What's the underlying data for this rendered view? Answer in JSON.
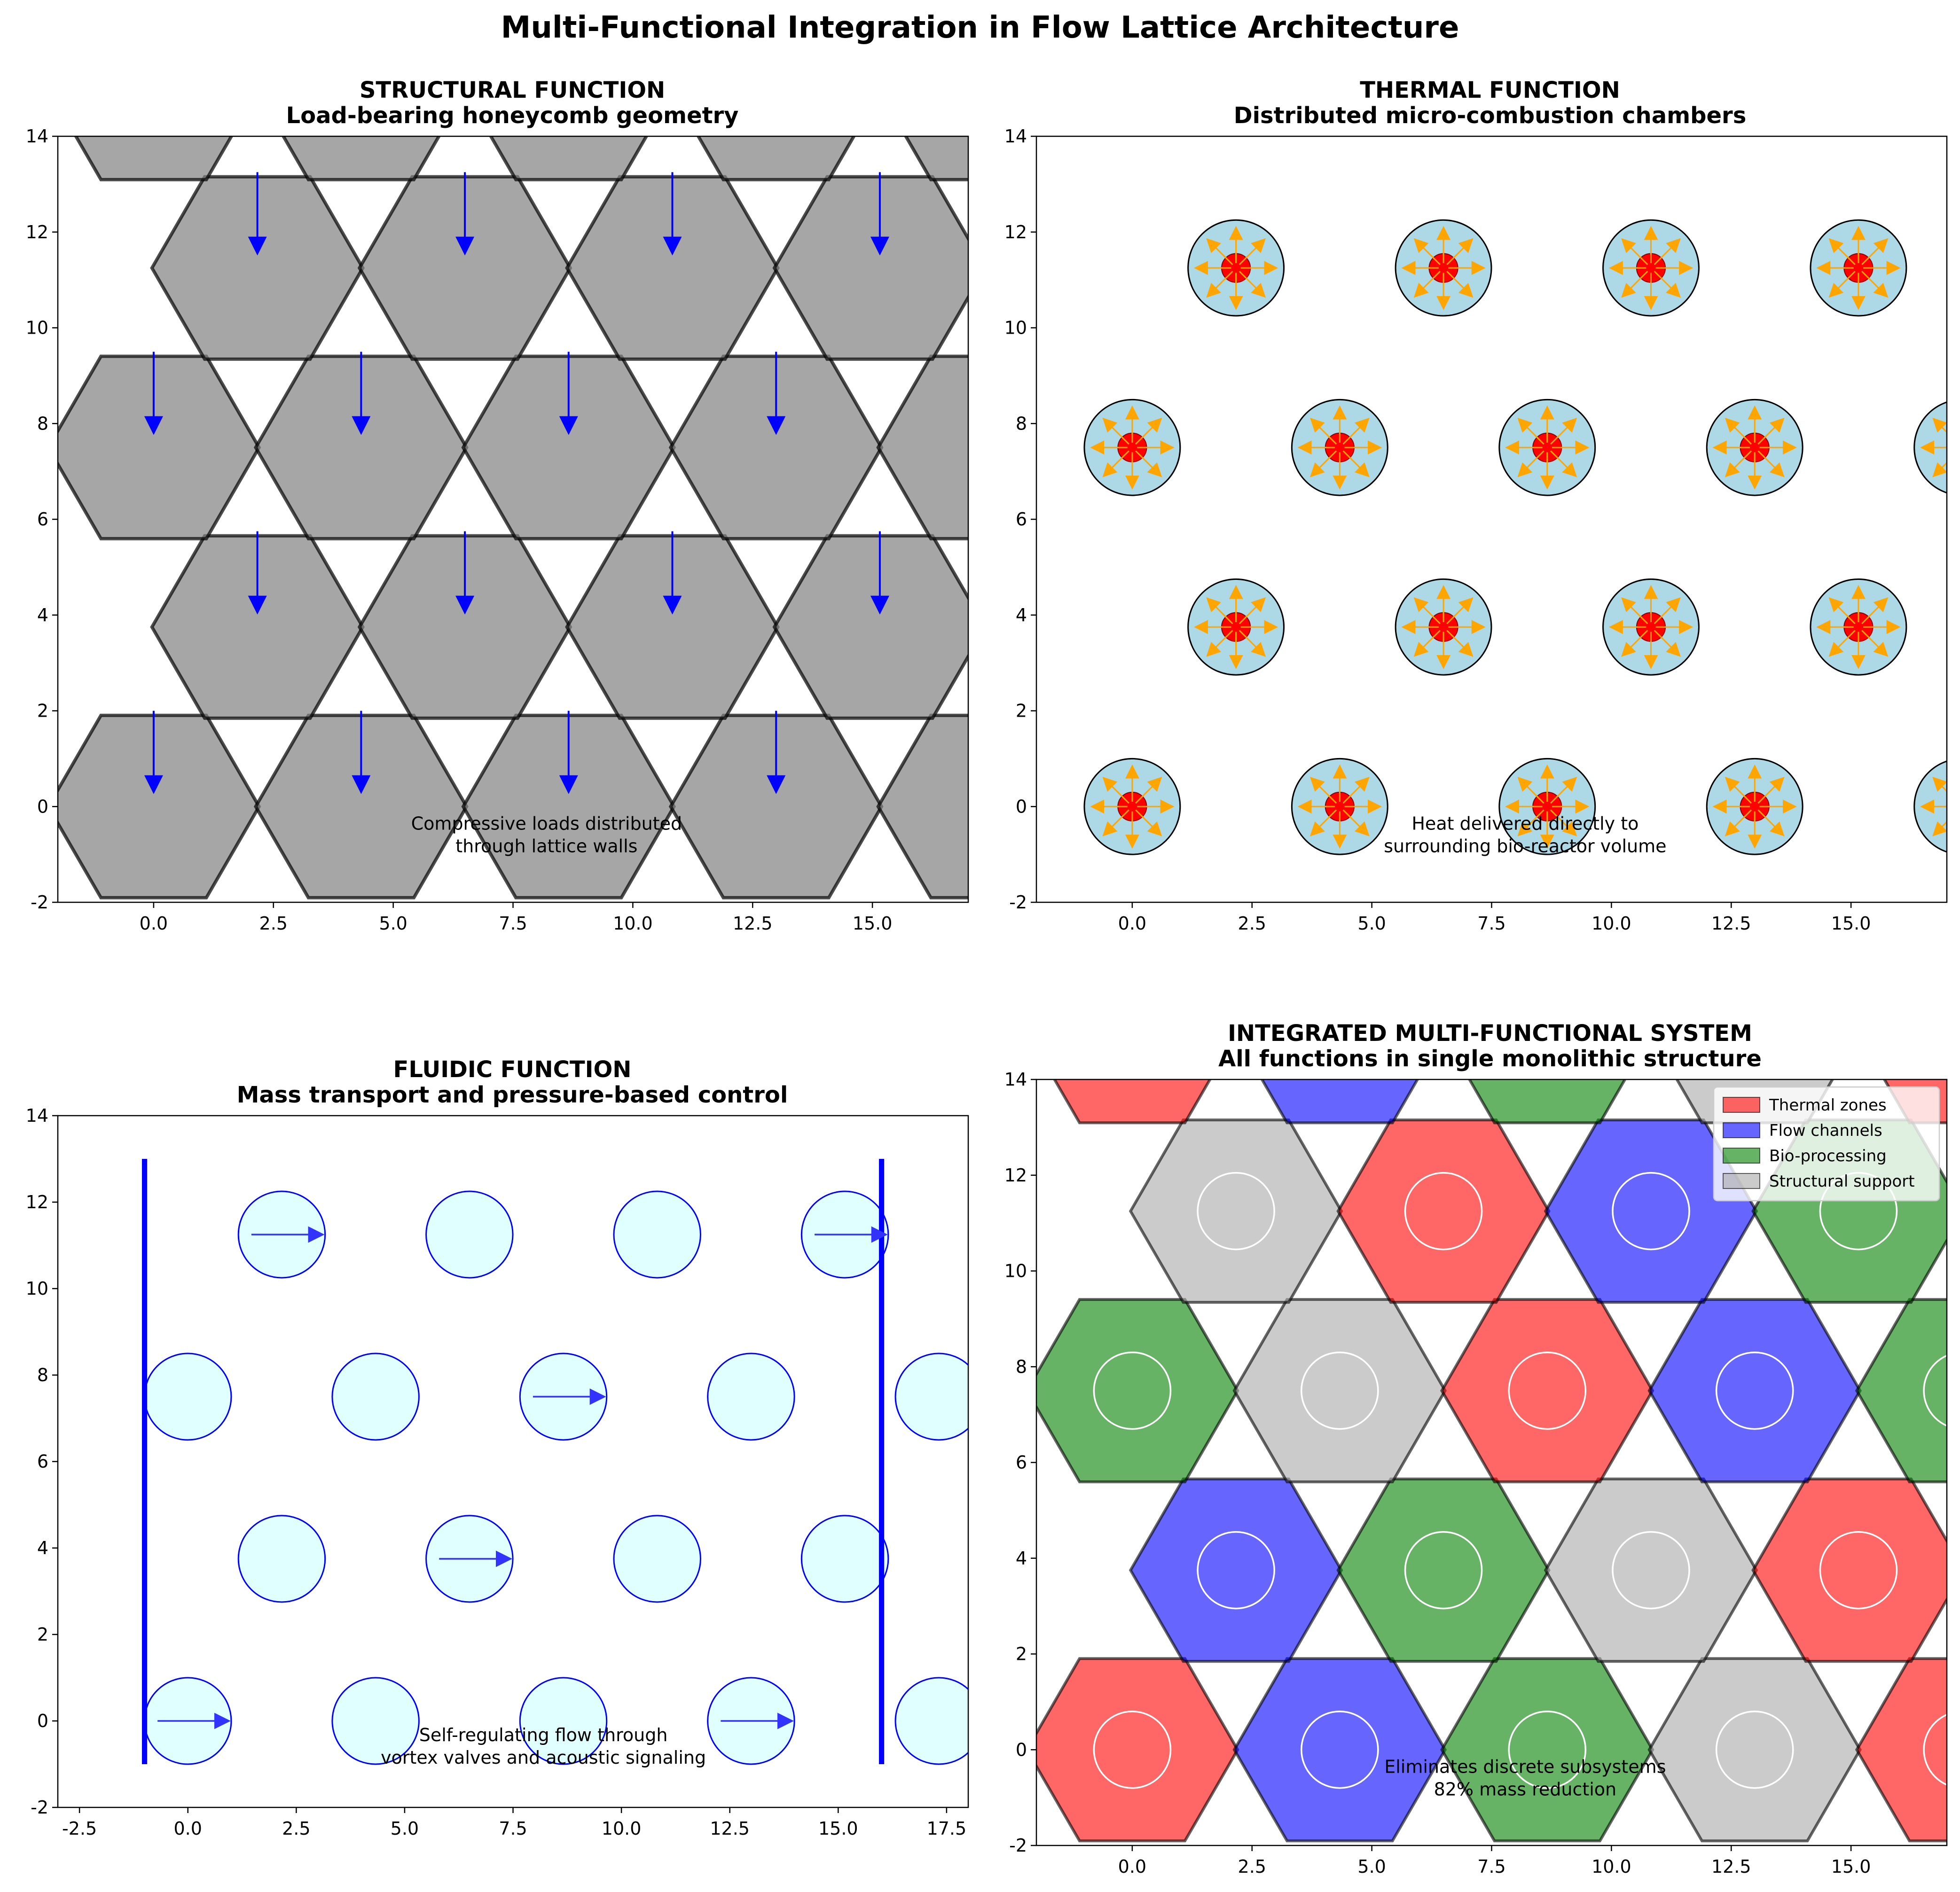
{
  "suptitle": "Multi-Functional Integration in Flow Lattice Architecture",
  "chart_data": [
    {
      "id": "structural",
      "type": "diagram",
      "title_line1": "STRUCTURAL FUNCTION",
      "title_line2": "Load-bearing honeycomb geometry",
      "xlim": [
        -2,
        17
      ],
      "ylim": [
        -2,
        14
      ],
      "xticks": [
        "0.0",
        "2.5",
        "5.0",
        "7.5",
        "10.0",
        "12.5",
        "15.0"
      ],
      "yticks": [
        "-2",
        "0",
        "2",
        "4",
        "6",
        "8",
        "10",
        "12",
        "14"
      ],
      "hex_radius": 2.2,
      "lattice": {
        "dx": 4.33,
        "dy": 3.75,
        "rows": 5,
        "cols": 5
      },
      "hex_fill": "#808080",
      "hex_alpha": 0.7,
      "arrow_color": "#0000ff",
      "annotation_line1": "Compressive loads distributed",
      "annotation_line2": "through lattice walls",
      "annotation_at": [
        8.2,
        -0.6
      ]
    },
    {
      "id": "thermal",
      "type": "diagram",
      "title_line1": "THERMAL FUNCTION",
      "title_line2": "Distributed micro-combustion chambers",
      "xlim": [
        -2,
        17
      ],
      "ylim": [
        -2,
        14
      ],
      "xticks": [
        "0.0",
        "2.5",
        "5.0",
        "7.5",
        "10.0",
        "12.5",
        "15.0"
      ],
      "yticks": [
        "-2",
        "0",
        "2",
        "4",
        "6",
        "8",
        "10",
        "12",
        "14"
      ],
      "lattice": {
        "dx": 4.33,
        "dy": 3.75,
        "rows": 4,
        "cols": 5
      },
      "chamber_radius": 1.0,
      "core_radius": 0.3,
      "chamber_fill": "#add8e6",
      "core_fill": "#ff0000",
      "ray_color": "#ffa500",
      "annotation_line1": "Heat delivered directly to",
      "annotation_line2": "surrounding bio-reactor volume",
      "annotation_at": [
        8.2,
        -0.6
      ]
    },
    {
      "id": "fluidic",
      "type": "diagram",
      "title_line1": "FLUIDIC FUNCTION",
      "title_line2": "Mass transport and pressure-based control",
      "xlim": [
        -3,
        18
      ],
      "ylim": [
        -2,
        14
      ],
      "xticks": [
        "-2.5",
        "0.0",
        "2.5",
        "5.0",
        "7.5",
        "10.0",
        "12.5",
        "15.0",
        "17.5"
      ],
      "yticks": [
        "-2",
        "0",
        "2",
        "4",
        "6",
        "8",
        "10",
        "12",
        "14"
      ],
      "lattice": {
        "dx": 4.33,
        "dy": 3.75,
        "rows": 4,
        "cols": 5
      },
      "channel_radius": 1.0,
      "channel_fill": "#e0ffff",
      "channel_edge": "#0000ff",
      "manifold_x": [
        -1,
        16
      ],
      "manifold_y": [
        -1,
        13
      ],
      "flow_cells": [
        [
          0,
          0
        ],
        [
          12.99,
          0
        ],
        [
          6.495,
          3.75
        ],
        [
          8.66,
          7.5
        ],
        [
          2.165,
          11.25
        ],
        [
          15.155,
          11.25
        ]
      ],
      "annotation_line1": "Self-regulating flow through",
      "annotation_line2": "vortex valves and acoustic signaling",
      "annotation_at": [
        8.2,
        -0.6
      ]
    },
    {
      "id": "integrated",
      "type": "diagram",
      "title_line1": "INTEGRATED MULTI-FUNCTIONAL SYSTEM",
      "title_line2": "All functions in single monolithic structure",
      "xlim": [
        -2,
        17
      ],
      "ylim": [
        -2,
        14
      ],
      "xticks": [
        "0.0",
        "2.5",
        "5.0",
        "7.5",
        "10.0",
        "12.5",
        "15.0"
      ],
      "yticks": [
        "-2",
        "0",
        "2",
        "4",
        "6",
        "8",
        "10",
        "12",
        "14"
      ],
      "hex_radius": 2.2,
      "inner_radius": 0.8,
      "lattice": {
        "dx": 4.33,
        "dy": 3.75,
        "rows": 5,
        "cols": 5
      },
      "legend": [
        {
          "label": "Thermal zones",
          "color": "#ff0000",
          "alpha": 0.6
        },
        {
          "label": "Flow channels",
          "color": "#0000ff",
          "alpha": 0.6
        },
        {
          "label": "Bio-processing",
          "color": "#008000",
          "alpha": 0.6
        },
        {
          "label": "Structural support",
          "color": "#a9a9a9",
          "alpha": 0.6
        }
      ],
      "legend_placement": "upper right",
      "annotation_line1": "Eliminates discrete subsystems",
      "annotation_line2": "82% mass reduction",
      "annotation_at": [
        8.2,
        -0.6
      ]
    }
  ]
}
